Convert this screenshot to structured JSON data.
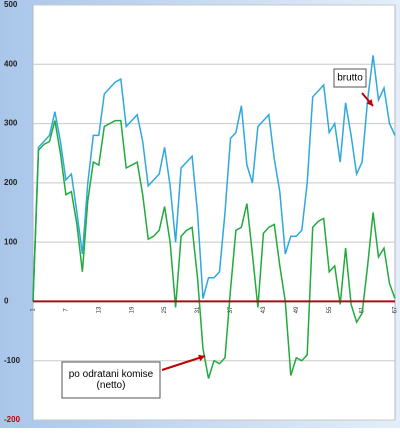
{
  "chart_data": {
    "type": "line",
    "categories": [
      1,
      null,
      null,
      null,
      null,
      null,
      7,
      null,
      null,
      null,
      null,
      null,
      13,
      null,
      null,
      null,
      null,
      null,
      19,
      null,
      null,
      null,
      null,
      null,
      25,
      null,
      null,
      null,
      null,
      null,
      31,
      null,
      null,
      null,
      null,
      null,
      37,
      null,
      null,
      null,
      null,
      null,
      43,
      null,
      null,
      null,
      null,
      null,
      49,
      null,
      null,
      null,
      null,
      null,
      55,
      null,
      null,
      null,
      null,
      null,
      61,
      null,
      null,
      null,
      null,
      null,
      67
    ],
    "series": [
      {
        "color": "#2ea8dd",
        "values": [
          0,
          260,
          270,
          280,
          320,
          270,
          205,
          215,
          150,
          80,
          200,
          280,
          280,
          350,
          360,
          370,
          375,
          295,
          305,
          315,
          270,
          195,
          205,
          215,
          260,
          195,
          100,
          225,
          235,
          245,
          150,
          5,
          40,
          40,
          50,
          150,
          275,
          285,
          330,
          230,
          200,
          295,
          305,
          315,
          240,
          185,
          80,
          110,
          110,
          120,
          200,
          345,
          355,
          365,
          285,
          300,
          235,
          335,
          280,
          215,
          235,
          340,
          415,
          340,
          360,
          300,
          280
        ]
      },
      {
        "color": "#22aa3c",
        "values": [
          0,
          255,
          265,
          270,
          305,
          250,
          180,
          185,
          130,
          50,
          170,
          235,
          230,
          295,
          300,
          305,
          305,
          225,
          230,
          235,
          180,
          105,
          110,
          120,
          160,
          100,
          -10,
          110,
          120,
          125,
          40,
          -80,
          -130,
          -100,
          -105,
          -95,
          20,
          120,
          125,
          165,
          80,
          -10,
          115,
          125,
          130,
          60,
          0,
          -125,
          -95,
          -100,
          -90,
          125,
          135,
          140,
          50,
          60,
          -5,
          90,
          -5,
          -35,
          -20,
          60,
          150,
          75,
          90,
          30,
          5
        ]
      },
      {
        "color": "#a0101a",
        "values": [
          0,
          0,
          0,
          0,
          0,
          0,
          0,
          0,
          0,
          0,
          0,
          0,
          0,
          0,
          0,
          0,
          0,
          0,
          0,
          0,
          0,
          0,
          0,
          0,
          0,
          0,
          0,
          0,
          0,
          0,
          0,
          0,
          0,
          0,
          0,
          0,
          0,
          0,
          0,
          0,
          0,
          0,
          0,
          0,
          0,
          0,
          0,
          0,
          0,
          0,
          0,
          0,
          0,
          0,
          0,
          0,
          0,
          0,
          0,
          0,
          0,
          0,
          0,
          0,
          0,
          0,
          0
        ]
      }
    ],
    "ylim": [
      -200,
      500
    ],
    "yticks": [
      -200,
      -100,
      0,
      100,
      200,
      300,
      400,
      500
    ],
    "grid": true,
    "annotations": [
      {
        "text": [
          "brutto"
        ]
      },
      {
        "text": [
          "po odratani komise",
          "(netto)"
        ]
      }
    ]
  }
}
